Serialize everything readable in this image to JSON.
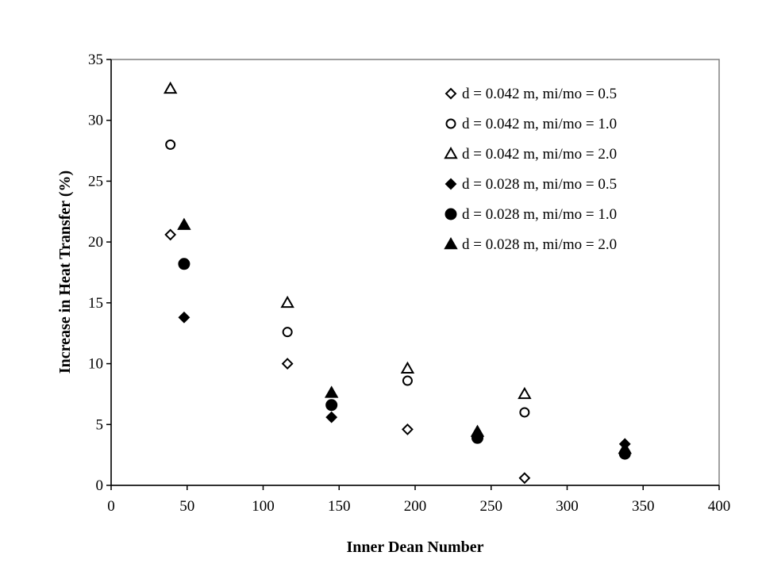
{
  "chart_data": {
    "type": "scatter",
    "title": "",
    "xlabel": "Inner Dean Number",
    "ylabel": "Increase in Heat Transfer (%)",
    "xlim": [
      0,
      400
    ],
    "ylim": [
      0,
      35
    ],
    "xticks": [
      0,
      50,
      100,
      150,
      200,
      250,
      300,
      350,
      400
    ],
    "yticks": [
      0,
      5,
      10,
      15,
      20,
      25,
      30,
      35
    ],
    "grid": false,
    "legend_position": "top-right",
    "series": [
      {
        "name": "d = 0.042 m, mi/mo = 0.5",
        "marker": "diamond",
        "filled": false,
        "points": [
          [
            39,
            20.6
          ],
          [
            116,
            10.0
          ],
          [
            195,
            4.6
          ],
          [
            272,
            0.6
          ]
        ]
      },
      {
        "name": "d = 0.042 m, mi/mo = 1.0",
        "marker": "circle",
        "filled": false,
        "points": [
          [
            39,
            28.0
          ],
          [
            116,
            12.6
          ],
          [
            195,
            8.6
          ],
          [
            272,
            6.0
          ]
        ]
      },
      {
        "name": "d = 0.042 m, mi/mo = 2.0",
        "marker": "triangle",
        "filled": false,
        "points": [
          [
            39,
            32.6
          ],
          [
            116,
            15.0
          ],
          [
            195,
            9.6
          ],
          [
            272,
            7.5
          ]
        ]
      },
      {
        "name": "d = 0.028 m, mi/mo = 0.5",
        "marker": "diamond",
        "filled": true,
        "points": [
          [
            48,
            13.8
          ],
          [
            145,
            5.6
          ],
          [
            241,
            4.0
          ],
          [
            338,
            3.4
          ]
        ]
      },
      {
        "name": "d = 0.028 m, mi/mo = 1.0",
        "marker": "circle",
        "filled": true,
        "points": [
          [
            48,
            18.2
          ],
          [
            145,
            6.6
          ],
          [
            241,
            3.9
          ],
          [
            338,
            2.6
          ]
        ]
      },
      {
        "name": "d = 0.028 m, mi/mo = 2.0",
        "marker": "triangle",
        "filled": true,
        "points": [
          [
            48,
            21.4
          ],
          [
            145,
            7.6
          ],
          [
            241,
            4.4
          ],
          [
            338,
            3.0
          ]
        ]
      }
    ]
  }
}
